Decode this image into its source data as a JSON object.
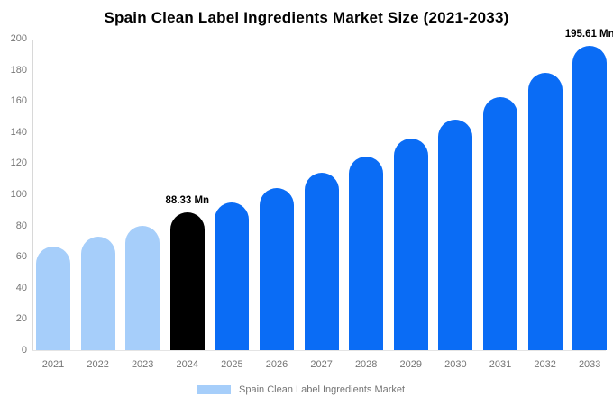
{
  "title": "Spain Clean Label Ingredients Market Size (2021-2033)",
  "legend": {
    "label": "Spain Clean Label Ingredients Market",
    "swatch_color": "#a6cefa"
  },
  "colors": {
    "historical_bar": "#a6cefa",
    "base_year_bar": "#000000",
    "forecast_bar": "#0a6cf5",
    "axis_text": "#757575",
    "annotation_text": "#000000"
  },
  "chart_data": {
    "type": "bar",
    "title": "Spain Clean Label Ingredients Market Size (2021-2033)",
    "categories": [
      "2021",
      "2022",
      "2023",
      "2024",
      "2025",
      "2026",
      "2027",
      "2028",
      "2029",
      "2030",
      "2031",
      "2032",
      "2033"
    ],
    "values": [
      66.4,
      73.0,
      79.5,
      88.33,
      95.0,
      103.9,
      113.6,
      124.2,
      136.0,
      148.2,
      162.5,
      178.0,
      195.61
    ],
    "unit": "Mn",
    "bar_colors": [
      "#a6cefa",
      "#a6cefa",
      "#a6cefa",
      "#000000",
      "#0a6cf5",
      "#0a6cf5",
      "#0a6cf5",
      "#0a6cf5",
      "#0a6cf5",
      "#0a6cf5",
      "#0a6cf5",
      "#0a6cf5",
      "#0a6cf5"
    ],
    "annotations": [
      {
        "category": "2024",
        "text": "88.33 Mn"
      },
      {
        "category": "2033",
        "text": "195.61 Mn"
      }
    ],
    "xlabel": "",
    "ylabel": "",
    "ylim": [
      0,
      200
    ],
    "yticks": [
      0,
      20,
      40,
      60,
      80,
      100,
      120,
      140,
      160,
      180,
      200
    ],
    "grid": false,
    "legend_position": "bottom",
    "legend_entries": [
      "Spain Clean Label Ingredients Market"
    ]
  }
}
